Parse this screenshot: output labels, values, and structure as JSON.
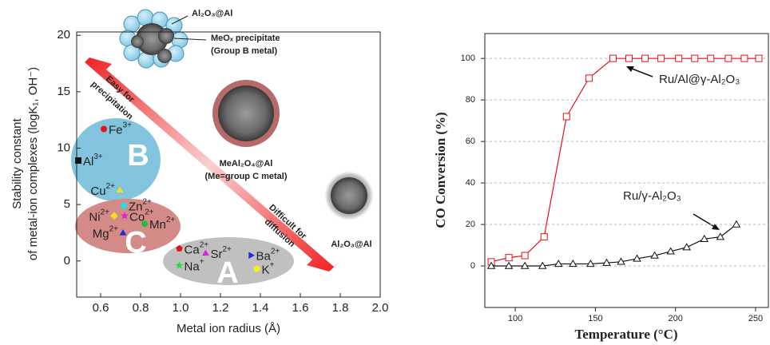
{
  "chart_data": [
    {
      "type": "scatter",
      "xlabel": "Metal ion radius (Å)",
      "ylabel": [
        "Stability constant",
        "of metal-ion complexes (logK₁, OH⁻)"
      ],
      "xlim": [
        0.48,
        2.0
      ],
      "xticks": [
        0.6,
        0.8,
        {
          "value": 1,
          "label": "1.0"
        },
        1.2,
        1.4,
        1.6,
        1.8,
        {
          "value": 2,
          "label": "2.0"
        }
      ],
      "ylim": [
        -3.2,
        20.3
      ],
      "yticks": [
        0,
        5,
        10,
        15,
        20
      ],
      "points": [
        {
          "label": "Fe",
          "charge": "3+",
          "x": 0.616,
          "y": 11.7,
          "color": "#e8101a",
          "marker": "circle"
        },
        {
          "label": "Al",
          "charge": "3+",
          "x": 0.488,
          "y": 8.9,
          "color": "#111111",
          "marker": "square"
        },
        {
          "label": "Cu",
          "charge": "2+",
          "x": 0.696,
          "y": 6.3,
          "color": "#f2e11a",
          "marker": "triangle"
        },
        {
          "label": "Zn",
          "charge": "2+",
          "x": 0.716,
          "y": 4.9,
          "color": "#1ee0e6",
          "marker": "circle"
        },
        {
          "label": "Ni",
          "charge": "2+",
          "x": 0.668,
          "y": 4.0,
          "color": "#f2e11a",
          "marker": "diamond"
        },
        {
          "label": "Co",
          "charge": "2+",
          "x": 0.72,
          "y": 4.0,
          "color": "#e020e0",
          "marker": "star"
        },
        {
          "label": "Mn",
          "charge": "2+",
          "x": 0.82,
          "y": 3.3,
          "color": "#22c03a",
          "marker": "circle"
        },
        {
          "label": "Mg",
          "charge": "2+",
          "x": 0.712,
          "y": 2.5,
          "color": "#1a2ee0",
          "marker": "triangle"
        },
        {
          "label": "Ca",
          "charge": "2+",
          "x": 0.994,
          "y": 1.1,
          "color": "#e8101a",
          "marker": "pentagon"
        },
        {
          "label": "Sr",
          "charge": "2+",
          "x": 1.126,
          "y": 0.7,
          "color": "#e020e0",
          "marker": "triangle"
        },
        {
          "label": "Ba",
          "charge": "2+",
          "x": 1.354,
          "y": 0.5,
          "color": "#1a2ee0",
          "marker": "triangle-right"
        },
        {
          "label": "Na",
          "charge": "+",
          "x": 0.994,
          "y": -0.4,
          "color": "#22e03a",
          "marker": "star"
        },
        {
          "label": "K",
          "charge": "+",
          "x": 1.382,
          "y": -0.7,
          "color": "#f5f01a",
          "marker": "circle"
        }
      ],
      "groups": [
        "B",
        "C",
        "A"
      ],
      "annotations": [
        "Al₂O₃@Al",
        "MeOₓ precipitate",
        "(Group B metal)",
        "MeAl₂O₄@Al",
        "(Me=group C metal)",
        "Al₂O₃@Al",
        "Easy for",
        "precipitation",
        "Difficult for",
        "diffusion"
      ]
    },
    {
      "type": "line",
      "xlabel": "Temperature (°C)",
      "ylabel": "CO Conversion (%)",
      "xlim": [
        81,
        258
      ],
      "xticks": [
        100,
        150,
        200,
        250
      ],
      "ylim": [
        -20,
        112
      ],
      "yticks": [
        0,
        20,
        40,
        60,
        80,
        100
      ],
      "grid": true,
      "series": [
        {
          "name": "Ru/Al@γ-Al₂O₃",
          "color": "#e8101a",
          "marker": "square",
          "x": [
            85,
            96,
            106,
            118,
            132,
            146,
            161,
            171,
            181,
            191,
            202,
            212,
            222,
            233,
            243,
            252
          ],
          "values": [
            2,
            4,
            5,
            14,
            72,
            90.5,
            100,
            100,
            100,
            100,
            100,
            100,
            100,
            100,
            100,
            100
          ]
        },
        {
          "name": "Ru/γ-Al₂O₃",
          "color": "#111111",
          "marker": "triangle",
          "x": [
            85,
            96,
            106,
            117,
            127,
            136,
            147,
            157,
            166,
            176,
            187,
            197,
            207,
            218,
            228,
            238
          ],
          "values": [
            0,
            0,
            0,
            0,
            1,
            1,
            1,
            1.5,
            2,
            3.5,
            5,
            7,
            9,
            13,
            14,
            20
          ]
        }
      ]
    }
  ]
}
